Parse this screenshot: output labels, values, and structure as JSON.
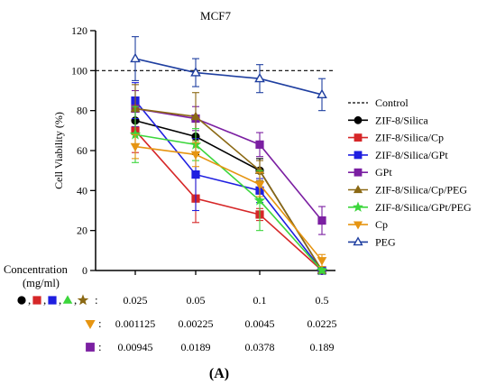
{
  "chart_data": {
    "type": "line",
    "title": "MCF7",
    "ylabel": "Cell Viability (%)",
    "ylim": [
      0,
      120
    ],
    "yticks": [
      0,
      20,
      40,
      60,
      80,
      100,
      120
    ],
    "grid": false,
    "legend_placement": "right",
    "categories": [
      "0.025",
      "0.05",
      "0.1",
      "0.5"
    ],
    "control": {
      "name": "Control",
      "value": 100,
      "color": "#000000"
    },
    "series": [
      {
        "name": "ZIF-8/Silica",
        "color": "#000000",
        "marker": "circle",
        "fill": true,
        "values": [
          75,
          67,
          50,
          0
        ],
        "errors": [
          7,
          9,
          6,
          1
        ]
      },
      {
        "name": "ZIF-8/Silica/Cp",
        "color": "#d62728",
        "marker": "square",
        "fill": true,
        "values": [
          70,
          36,
          28,
          0
        ],
        "errors": [
          11,
          12,
          3,
          1
        ]
      },
      {
        "name": "ZIF-8/Silica/GPt",
        "color": "#1f1fe0",
        "marker": "square",
        "fill": true,
        "values": [
          85,
          48,
          40,
          0
        ],
        "errors": [
          9,
          18,
          6,
          1
        ]
      },
      {
        "name": "GPt",
        "color": "#7b1fa2",
        "marker": "square",
        "fill": true,
        "values": [
          81,
          76,
          63,
          25
        ],
        "errors": [
          9,
          6,
          6,
          7
        ]
      },
      {
        "name": "ZIF-8/Silica/Cp/PEG",
        "color": "#8b6914",
        "marker": "triangle",
        "fill": true,
        "values": [
          81,
          77,
          50,
          0
        ],
        "errors": [
          12,
          12,
          5,
          1
        ]
      },
      {
        "name": "ZIF-8/Silica/GPt/PEG",
        "color": "#3cd63c",
        "marker": "star",
        "fill": true,
        "values": [
          68,
          63,
          35,
          0
        ],
        "errors": [
          14,
          8,
          15,
          1
        ]
      },
      {
        "name": "Cp",
        "color": "#e69512",
        "marker": "triangle-down",
        "fill": true,
        "values": [
          62,
          58,
          43,
          5
        ],
        "errors": [
          6,
          6,
          6,
          3
        ]
      },
      {
        "name": "PEG",
        "color": "#1f3fa0",
        "marker": "triangle",
        "fill": false,
        "values": [
          106,
          99,
          96,
          88
        ],
        "errors": [
          11,
          7,
          7,
          8
        ]
      }
    ]
  },
  "table": {
    "header_label": "Concentration\n(mg/ml)",
    "rows": [
      {
        "symbols": [
          "circle-black",
          "square-red",
          "square-blue",
          "triangle-green",
          "star-brown"
        ],
        "symbol_colors": [
          "#000000",
          "#d62728",
          "#1f1fe0",
          "#3cd63c",
          "#8b6914"
        ],
        "values": [
          "0.025",
          "0.05",
          "0.1",
          "0.5"
        ]
      },
      {
        "symbols": [
          "triangle-down-orange"
        ],
        "symbol_colors": [
          "#e69512"
        ],
        "values": [
          "0.001125",
          "0.00225",
          "0.0045",
          "0.0225"
        ]
      },
      {
        "symbols": [
          "square-purple"
        ],
        "symbol_colors": [
          "#7b1fa2"
        ],
        "values": [
          "0.00945",
          "0.0189",
          "0.0378",
          "0.189"
        ]
      }
    ]
  },
  "figure_label": "(A)"
}
